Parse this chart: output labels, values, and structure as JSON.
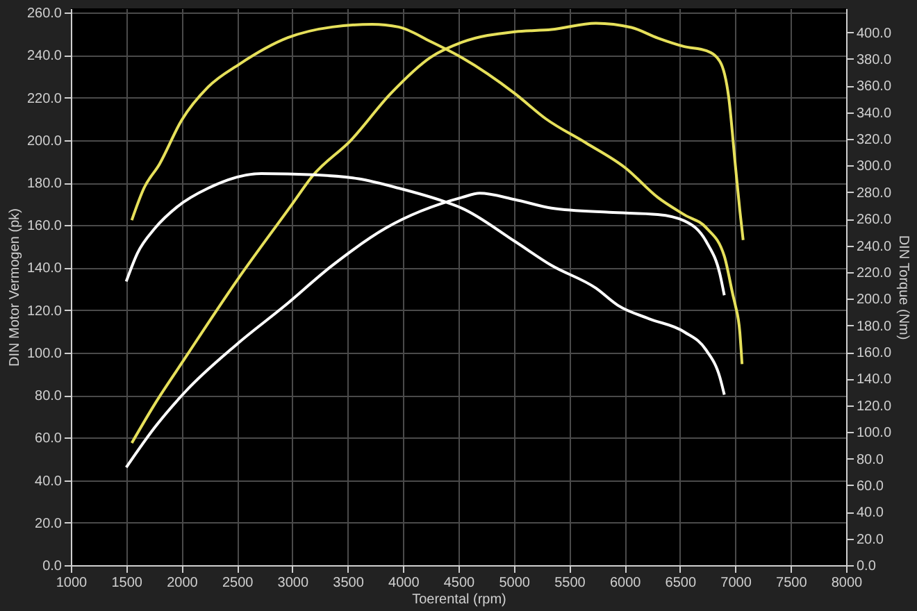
{
  "chart_data": {
    "type": "line",
    "xlabel": "Toerental (rpm)",
    "ylabel": "DIN Motor Vermogen (pk)",
    "y2label": "DIN Torque (Nm)",
    "xlim": [
      1000,
      8000
    ],
    "xticks": [
      1000,
      1500,
      2000,
      2500,
      3000,
      3500,
      4000,
      4500,
      5000,
      5500,
      6000,
      6500,
      7000,
      7500,
      8000
    ],
    "ylim": [
      0,
      262
    ],
    "yticks": [
      {
        "value": 0,
        "label": "0.0"
      },
      {
        "value": 20,
        "label": "20.0"
      },
      {
        "value": 40,
        "label": "40.0"
      },
      {
        "value": 60,
        "label": "60.0"
      },
      {
        "value": 80,
        "label": "80.0"
      },
      {
        "value": 100,
        "label": "100.0"
      },
      {
        "value": 120,
        "label": "120.0"
      },
      {
        "value": 140,
        "label": "140.0"
      },
      {
        "value": 160,
        "label": "160.0"
      },
      {
        "value": 180,
        "label": "180.0"
      },
      {
        "value": 200,
        "label": "200.0"
      },
      {
        "value": 220,
        "label": "220.0"
      },
      {
        "value": 240,
        "label": "240.0"
      },
      {
        "value": 260,
        "label": "260.0"
      }
    ],
    "y2lim": [
      0,
      418
    ],
    "y2ticks": [
      {
        "value": 0,
        "label": "0.0"
      },
      {
        "value": 20,
        "label": "20.0"
      },
      {
        "value": 40,
        "label": "40.0"
      },
      {
        "value": 60,
        "label": "60.0"
      },
      {
        "value": 80,
        "label": "80.0"
      },
      {
        "value": 100,
        "label": "100.0"
      },
      {
        "value": 120,
        "label": "120.0"
      },
      {
        "value": 140,
        "label": "140.0"
      },
      {
        "value": 160,
        "label": "160.0"
      },
      {
        "value": 180,
        "label": "180.0"
      },
      {
        "value": 200,
        "label": "200.0"
      },
      {
        "value": 220,
        "label": "220.0"
      },
      {
        "value": 240,
        "label": "240.0"
      },
      {
        "value": 260,
        "label": "260.0"
      },
      {
        "value": 280,
        "label": "280.0"
      },
      {
        "value": 300,
        "label": "300.0"
      },
      {
        "value": 320,
        "label": "320.0"
      },
      {
        "value": 340,
        "label": "340.0"
      },
      {
        "value": 360,
        "label": "360.0"
      },
      {
        "value": 380,
        "label": "380.0"
      },
      {
        "value": 400,
        "label": "400.0"
      }
    ],
    "grid": true,
    "series": [
      {
        "color": "#e6e05a",
        "x": [
          1550,
          1760,
          2000,
          2500,
          3000,
          3180,
          3530,
          3890,
          4250,
          4530,
          5010,
          5340,
          5740,
          6060,
          6300,
          6540,
          6740,
          6860,
          6940,
          7000,
          7040,
          7070
        ],
        "values": [
          57.5,
          76,
          95,
          134,
          170,
          183,
          200,
          222,
          239,
          246,
          251,
          252,
          255,
          253,
          248,
          244,
          242,
          237,
          220,
          188,
          167,
          153
        ]
      },
      {
        "color": "#ffffff",
        "x": [
          1500,
          1760,
          2040,
          2500,
          2930,
          3360,
          3840,
          4530,
          4690,
          5010,
          5340,
          5860,
          6300,
          6540,
          6740,
          6860,
          6900
        ],
        "values": [
          46,
          65,
          82,
          104,
          122,
          141,
          158.5,
          173,
          175,
          172,
          168,
          166,
          165,
          162,
          152,
          137,
          127
        ]
      },
      {
        "color": "#e6e05a",
        "axis": "y2",
        "x": [
          1550,
          1660,
          1800,
          2000,
          2240,
          2520,
          2960,
          3360,
          3720,
          3960,
          4250,
          4530,
          5010,
          5290,
          5650,
          6010,
          6300,
          6540,
          6740,
          6900,
          6980,
          7000,
          7040,
          7060
        ],
        "values": [
          259,
          283,
          301,
          334,
          359,
          376,
          396,
          404,
          406,
          404,
          393,
          381,
          354,
          335,
          317,
          298,
          276,
          263,
          253,
          232,
          202,
          195,
          175,
          151
        ]
      },
      {
        "color": "#ffffff",
        "axis": "y2",
        "x": [
          1500,
          1600,
          1760,
          1960,
          2240,
          2720,
          3200,
          3600,
          3960,
          4370,
          4530,
          5010,
          5340,
          5740,
          5940,
          6220,
          6540,
          6740,
          6860,
          6900
        ],
        "values": [
          213,
          234,
          253,
          269,
          283,
          294,
          293,
          290,
          283,
          273,
          268,
          243,
          225,
          208,
          195,
          185,
          175,
          161,
          141,
          128
        ]
      }
    ]
  }
}
